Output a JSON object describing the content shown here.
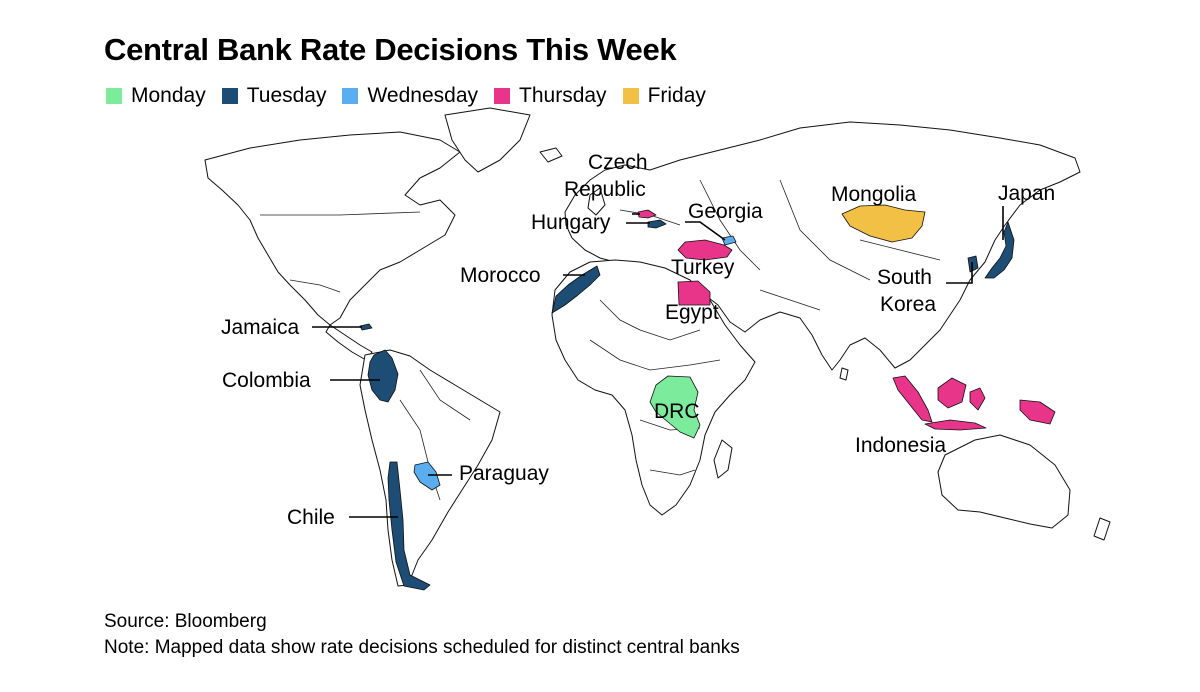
{
  "title": "Central Bank Rate Decisions This Week",
  "legend": [
    {
      "label": "Monday",
      "color": "#7ceb9c"
    },
    {
      "label": "Tuesday",
      "color": "#1d4d74"
    },
    {
      "label": "Wednesday",
      "color": "#5aaef0"
    },
    {
      "label": "Thursday",
      "color": "#e8358a"
    },
    {
      "label": "Friday",
      "color": "#f1c045"
    }
  ],
  "countries": [
    {
      "name": "Jamaica",
      "day": "Tuesday"
    },
    {
      "name": "Colombia",
      "day": "Tuesday"
    },
    {
      "name": "Chile",
      "day": "Tuesday"
    },
    {
      "name": "Paraguay",
      "day": "Wednesday"
    },
    {
      "name": "Morocco",
      "day": "Tuesday"
    },
    {
      "name": "Czech Republic",
      "label_line1": "Czech",
      "label_line2": "Republic",
      "day": "Thursday"
    },
    {
      "name": "Hungary",
      "day": "Tuesday"
    },
    {
      "name": "Georgia",
      "day": "Wednesday"
    },
    {
      "name": "Turkey",
      "day": "Thursday"
    },
    {
      "name": "Egypt",
      "day": "Thursday"
    },
    {
      "name": "DRC",
      "day": "Monday"
    },
    {
      "name": "Mongolia",
      "day": "Friday"
    },
    {
      "name": "Japan",
      "day": "Tuesday"
    },
    {
      "name": "South Korea",
      "label_line1": "South",
      "label_line2": "Korea",
      "day": "Tuesday"
    },
    {
      "name": "Indonesia",
      "day": "Thursday"
    }
  ],
  "footer": {
    "source": "Source: Bloomberg",
    "note": "Note: Mapped data show rate decisions scheduled for distinct central banks"
  }
}
